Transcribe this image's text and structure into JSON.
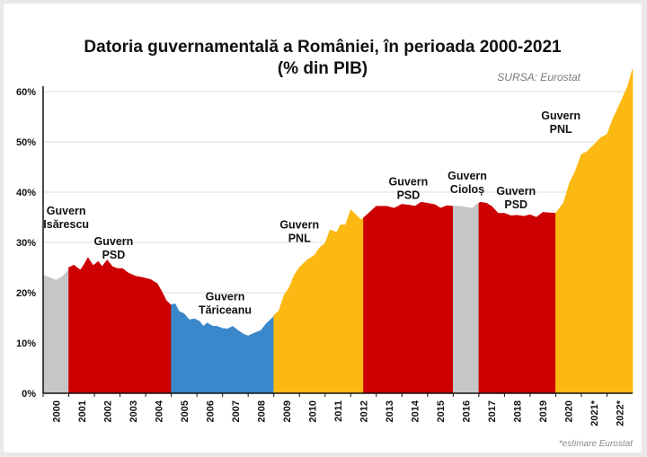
{
  "chart_data": {
    "type": "area",
    "title": "Datoria guvernamentală a României, în  perioada 2000-2021",
    "subtitle": "(% din PIB)",
    "source": "SURSA: Eurostat",
    "footnote": "*estimare Eurostat",
    "ylim": [
      0,
      60
    ],
    "yticks": [
      "0%",
      "10%",
      "20%",
      "30%",
      "40%",
      "50%",
      "60%"
    ],
    "xlim": [
      2000,
      2023
    ],
    "xticks": [
      "2000",
      "2001",
      "2002",
      "2003",
      "2004",
      "2005",
      "2006",
      "2007",
      "2008",
      "2009",
      "2010",
      "2011",
      "2012",
      "2013",
      "2014",
      "2015",
      "2016",
      "2017",
      "2018",
      "2019",
      "2020",
      "2021*",
      "2022*"
    ],
    "grid": "horizontal",
    "points": [
      [
        2000.0,
        23.5
      ],
      [
        2000.25,
        23.0
      ],
      [
        2000.5,
        22.5
      ],
      [
        2000.75,
        23.2
      ],
      [
        2000.99,
        24.5
      ],
      [
        2001.0,
        25.0
      ],
      [
        2001.2,
        25.5
      ],
      [
        2001.45,
        24.5
      ],
      [
        2001.6,
        25.6
      ],
      [
        2001.75,
        27.0
      ],
      [
        2001.95,
        25.4
      ],
      [
        2002.15,
        26.2
      ],
      [
        2002.3,
        25.2
      ],
      [
        2002.5,
        26.5
      ],
      [
        2002.7,
        25.2
      ],
      [
        2002.9,
        24.8
      ],
      [
        2003.1,
        24.8
      ],
      [
        2003.3,
        24.0
      ],
      [
        2003.6,
        23.3
      ],
      [
        2003.9,
        23.0
      ],
      [
        2004.2,
        22.6
      ],
      [
        2004.45,
        21.8
      ],
      [
        2004.6,
        20.5
      ],
      [
        2004.8,
        18.5
      ],
      [
        2004.99,
        17.5
      ],
      [
        2005.0,
        17.6
      ],
      [
        2005.15,
        17.8
      ],
      [
        2005.3,
        16.3
      ],
      [
        2005.5,
        15.8
      ],
      [
        2005.7,
        14.6
      ],
      [
        2005.9,
        14.8
      ],
      [
        2006.1,
        14.3
      ],
      [
        2006.25,
        13.3
      ],
      [
        2006.4,
        14.0
      ],
      [
        2006.6,
        13.4
      ],
      [
        2006.8,
        13.3
      ],
      [
        2007.0,
        12.9
      ],
      [
        2007.2,
        12.8
      ],
      [
        2007.4,
        13.3
      ],
      [
        2007.6,
        12.5
      ],
      [
        2007.8,
        11.8
      ],
      [
        2008.0,
        11.4
      ],
      [
        2008.25,
        12.0
      ],
      [
        2008.5,
        12.5
      ],
      [
        2008.7,
        13.8
      ],
      [
        2008.99,
        15.2
      ],
      [
        2009.0,
        15.5
      ],
      [
        2009.2,
        16.4
      ],
      [
        2009.4,
        19.5
      ],
      [
        2009.6,
        21.0
      ],
      [
        2009.8,
        23.5
      ],
      [
        2010.0,
        25.0
      ],
      [
        2010.3,
        26.5
      ],
      [
        2010.6,
        27.5
      ],
      [
        2010.8,
        29.0
      ],
      [
        2011.0,
        29.8
      ],
      [
        2011.2,
        32.5
      ],
      [
        2011.45,
        32.0
      ],
      [
        2011.6,
        33.5
      ],
      [
        2011.8,
        33.5
      ],
      [
        2012.0,
        36.5
      ],
      [
        2012.2,
        35.5
      ],
      [
        2012.4,
        34.5
      ],
      [
        2012.5,
        34.9
      ],
      [
        2012.7,
        35.8
      ],
      [
        2013.0,
        37.2
      ],
      [
        2013.4,
        37.2
      ],
      [
        2013.7,
        36.8
      ],
      [
        2014.0,
        37.6
      ],
      [
        2014.3,
        37.4
      ],
      [
        2014.5,
        37.2
      ],
      [
        2014.75,
        38.0
      ],
      [
        2015.0,
        37.8
      ],
      [
        2015.3,
        37.5
      ],
      [
        2015.5,
        36.8
      ],
      [
        2015.75,
        37.3
      ],
      [
        2016.0,
        37.2
      ],
      [
        2016.25,
        37.2
      ],
      [
        2016.5,
        37.0
      ],
      [
        2016.75,
        36.8
      ],
      [
        2016.9,
        37.6
      ],
      [
        2017.0,
        37.8
      ],
      [
        2017.05,
        38.0
      ],
      [
        2017.3,
        37.8
      ],
      [
        2017.5,
        37.2
      ],
      [
        2017.75,
        35.8
      ],
      [
        2018.0,
        35.8
      ],
      [
        2018.25,
        35.3
      ],
      [
        2018.5,
        35.4
      ],
      [
        2018.75,
        35.2
      ],
      [
        2019.0,
        35.5
      ],
      [
        2019.25,
        35.0
      ],
      [
        2019.5,
        36.0
      ],
      [
        2019.75,
        35.9
      ],
      [
        2019.99,
        35.8
      ],
      [
        2020.1,
        36.5
      ],
      [
        2020.3,
        37.8
      ],
      [
        2020.55,
        42.0
      ],
      [
        2020.75,
        44.0
      ],
      [
        2021.0,
        47.5
      ],
      [
        2021.2,
        48.0
      ],
      [
        2021.5,
        49.5
      ],
      [
        2021.75,
        50.8
      ],
      [
        2022.0,
        51.5
      ],
      [
        2022.25,
        54.8
      ],
      [
        2022.5,
        57.5
      ],
      [
        2022.8,
        61.0
      ],
      [
        2023.0,
        64.5
      ]
    ],
    "segments": [
      {
        "from": 2000.0,
        "to": 2001.0,
        "color": "#c6c6c6",
        "label": [
          "Guvern",
          "Isărescu"
        ],
        "lx": 2000.9,
        "ly": 35.5
      },
      {
        "from": 2001.0,
        "to": 2005.0,
        "color": "#cc0000",
        "label": [
          "Guvern",
          "PSD"
        ],
        "lx": 2002.75,
        "ly": 29.5
      },
      {
        "from": 2005.0,
        "to": 2009.0,
        "color": "#3a88cb",
        "label": [
          "Guvern",
          "Tăriceanu"
        ],
        "lx": 2007.1,
        "ly": 18.5
      },
      {
        "from": 2009.0,
        "to": 2012.5,
        "color": "#fdb913",
        "label": [
          "Guvern",
          "PNL"
        ],
        "lx": 2010.0,
        "ly": 32.8
      },
      {
        "from": 2012.5,
        "to": 2016.0,
        "color": "#cc0000",
        "label": [
          "Guvern",
          "PSD"
        ],
        "lx": 2014.25,
        "ly": 41.3
      },
      {
        "from": 2016.0,
        "to": 2017.0,
        "color": "#c6c6c6",
        "label": [
          "Guvern",
          "Cioloș"
        ],
        "lx": 2016.55,
        "ly": 42.5
      },
      {
        "from": 2017.0,
        "to": 2020.0,
        "color": "#cc0000",
        "label": [
          "Guvern",
          "PSD"
        ],
        "lx": 2018.45,
        "ly": 39.5
      },
      {
        "from": 2020.0,
        "to": 2023.0,
        "color": "#fdb913",
        "label": [
          "Guvern",
          "PNL"
        ],
        "lx": 2020.2,
        "ly": 54.5
      }
    ]
  }
}
